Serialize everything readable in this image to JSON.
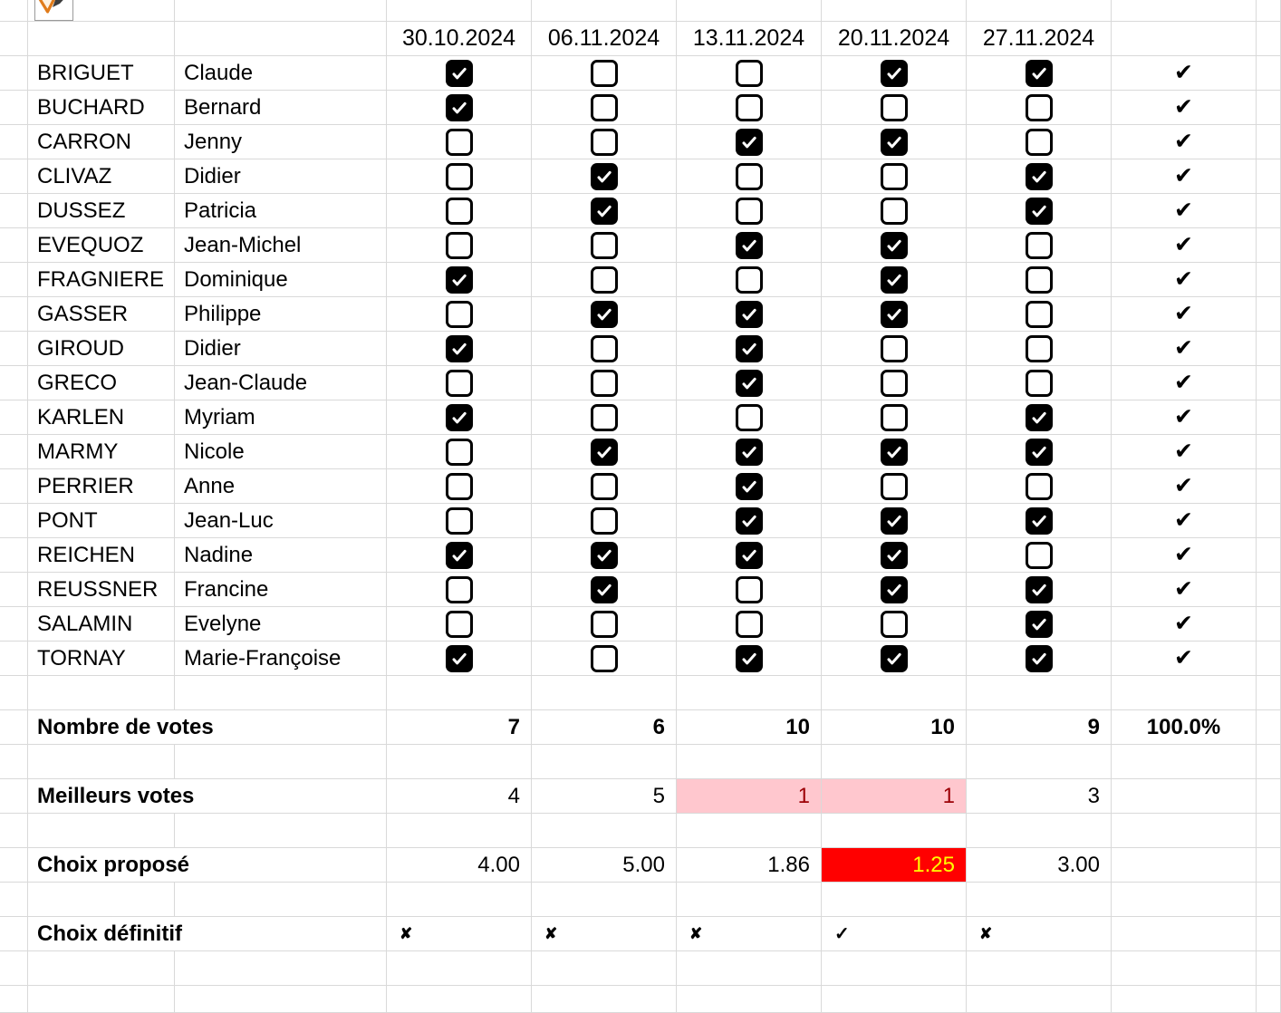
{
  "sheet": {
    "header": {
      "dates": [
        "30.10.2024",
        "06.11.2024",
        "13.11.2024",
        "20.11.2024",
        "27.11.2024"
      ]
    },
    "people": [
      {
        "last": "BRIGUET",
        "first": "Claude",
        "votes": [
          true,
          false,
          false,
          true,
          true
        ],
        "confirmed": "✔"
      },
      {
        "last": "BUCHARD",
        "first": "Bernard",
        "votes": [
          true,
          false,
          false,
          false,
          false
        ],
        "confirmed": "✔"
      },
      {
        "last": "CARRON",
        "first": "Jenny",
        "votes": [
          false,
          false,
          true,
          true,
          false
        ],
        "confirmed": "✔"
      },
      {
        "last": "CLIVAZ",
        "first": "Didier",
        "votes": [
          false,
          true,
          false,
          false,
          true
        ],
        "confirmed": "✔"
      },
      {
        "last": "DUSSEZ",
        "first": "Patricia",
        "votes": [
          false,
          true,
          false,
          false,
          true
        ],
        "confirmed": "✔"
      },
      {
        "last": "EVEQUOZ",
        "first": "Jean-Michel",
        "votes": [
          false,
          false,
          true,
          true,
          false
        ],
        "confirmed": "✔"
      },
      {
        "last": "FRAGNIERE",
        "first": "Dominique",
        "votes": [
          true,
          false,
          false,
          true,
          false
        ],
        "confirmed": "✔"
      },
      {
        "last": "GASSER",
        "first": "Philippe",
        "votes": [
          false,
          true,
          true,
          true,
          false
        ],
        "confirmed": "✔"
      },
      {
        "last": "GIROUD",
        "first": "Didier",
        "votes": [
          true,
          false,
          true,
          false,
          false
        ],
        "confirmed": "✔"
      },
      {
        "last": "GRECO",
        "first": "Jean-Claude",
        "votes": [
          false,
          false,
          true,
          false,
          false
        ],
        "confirmed": "✔"
      },
      {
        "last": "KARLEN",
        "first": "Myriam",
        "votes": [
          true,
          false,
          false,
          false,
          true
        ],
        "confirmed": "✔"
      },
      {
        "last": "MARMY",
        "first": "Nicole",
        "votes": [
          false,
          true,
          true,
          true,
          true
        ],
        "confirmed": "✔"
      },
      {
        "last": "PERRIER",
        "first": "Anne",
        "votes": [
          false,
          false,
          true,
          false,
          false
        ],
        "confirmed": "✔"
      },
      {
        "last": "PONT",
        "first": "Jean-Luc",
        "votes": [
          false,
          false,
          true,
          true,
          true
        ],
        "confirmed": "✔"
      },
      {
        "last": "REICHEN",
        "first": "Nadine",
        "votes": [
          true,
          true,
          true,
          true,
          false
        ],
        "confirmed": "✔"
      },
      {
        "last": "REUSSNER",
        "first": "Francine",
        "votes": [
          false,
          true,
          false,
          true,
          true
        ],
        "confirmed": "✔"
      },
      {
        "last": "SALAMIN",
        "first": "Evelyne",
        "votes": [
          false,
          false,
          false,
          false,
          true
        ],
        "confirmed": "✔"
      },
      {
        "last": "TORNAY",
        "first": "Marie-Françoise",
        "votes": [
          true,
          false,
          true,
          true,
          true
        ],
        "confirmed": "✔"
      }
    ],
    "summary": {
      "votes": {
        "label": "Nombre de votes",
        "values": [
          "7",
          "6",
          "10",
          "10",
          "9"
        ],
        "total": "100.0%"
      },
      "best": {
        "label": "Meilleurs votes",
        "values": [
          "4",
          "5",
          "1",
          "1",
          "3"
        ],
        "highlighted": [
          2,
          3
        ]
      },
      "proposed": {
        "label": "Choix proposé",
        "values": [
          "4.00",
          "5.00",
          "1.86",
          "1.25",
          "3.00"
        ],
        "highlighted": [
          3
        ]
      },
      "final": {
        "label": "Choix définitif",
        "marks": [
          "✘",
          "✘",
          "✘",
          "✓",
          "✘"
        ]
      }
    },
    "icon": {
      "name": "funnel-pencil-object"
    }
  },
  "colors": {
    "gridline": "#d9d9d9",
    "best_highlight_bg": "#ffc7ce",
    "best_highlight_fg": "#9c0006",
    "proposed_highlight_bg": "#ff0000",
    "proposed_highlight_fg": "#ffff00",
    "checkbox_fill": "#000000",
    "icon_orange": "#e07b1a",
    "icon_dark": "#3d3d3d"
  }
}
